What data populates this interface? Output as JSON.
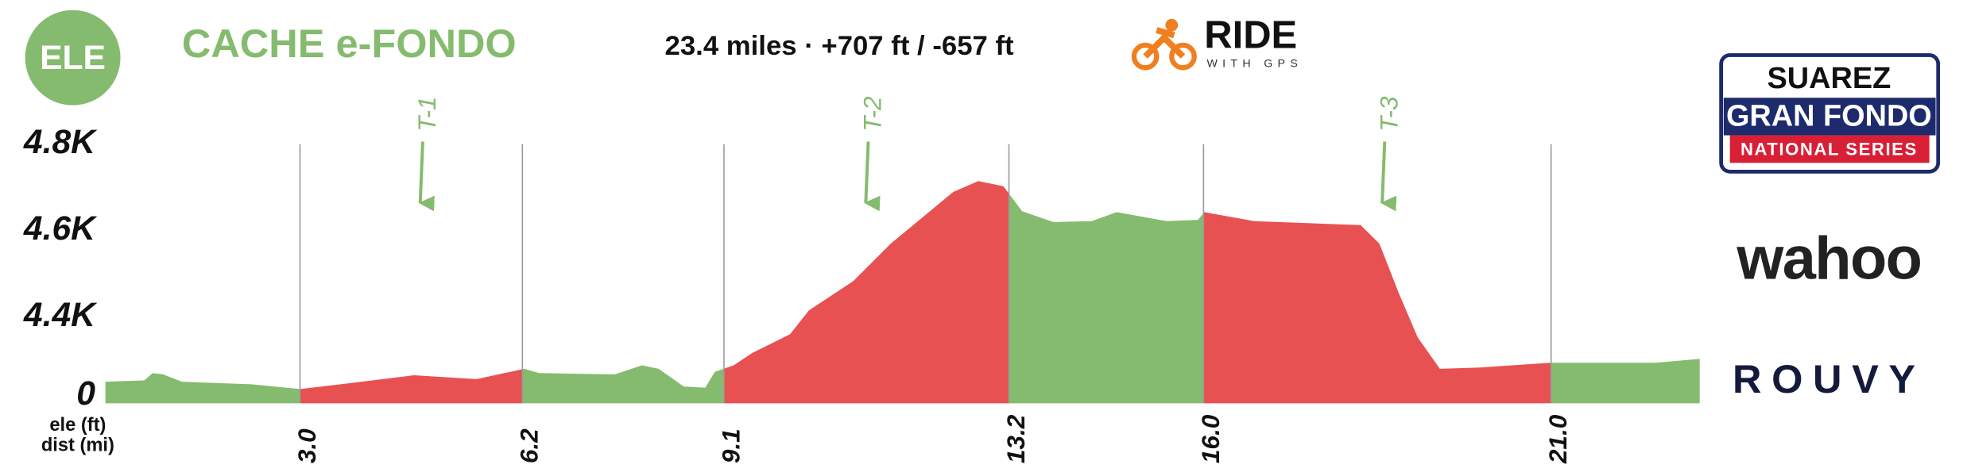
{
  "chart_data": {
    "type": "area",
    "badge": "ELE",
    "title": "CACHE e-FONDO",
    "subtitle": "23.4 miles · +707 ft / -657 ft",
    "y_label": "ele (ft)",
    "x_label": "dist (mi)",
    "x": [
      0.2,
      0.76,
      0.88,
      1.03,
      1.3,
      2.3,
      3.0,
      3.74,
      4.64,
      5.54,
      6.23,
      6.44,
      7.53,
      7.92,
      8.16,
      8.52,
      8.83,
      8.97,
      9.24,
      9.51,
      10.05,
      10.32,
      10.96,
      11.5,
      11.95,
      12.4,
      12.76,
      13.12,
      13.39,
      13.84,
      14.39,
      14.75,
      15.47,
      15.92,
      16.01,
      16.73,
      18.26,
      18.53,
      18.81,
      19.08,
      19.4,
      19.98,
      20.99,
      22.5,
      23.14
    ],
    "values": [
      4250,
      4253,
      4270,
      4267,
      4250,
      4244,
      4233,
      4247,
      4265,
      4256,
      4280,
      4270,
      4267,
      4288,
      4280,
      4239,
      4236,
      4273,
      4288,
      4317,
      4360,
      4415,
      4483,
      4570,
      4630,
      4690,
      4715,
      4703,
      4645,
      4620,
      4622,
      4643,
      4622,
      4625,
      4643,
      4622,
      4613,
      4570,
      4455,
      4353,
      4280,
      4283,
      4294,
      4294,
      4303
    ],
    "xlim": [
      0.2,
      23.14
    ],
    "ylim": [
      4200,
      4850
    ],
    "y_axis_break": true,
    "yticks": [
      {
        "value": 0,
        "label": "0"
      },
      {
        "value": 4400,
        "label": "4.4K"
      },
      {
        "value": 4600,
        "label": "4.6K"
      },
      {
        "value": 4800,
        "label": "4.8K"
      }
    ],
    "xticks": [
      {
        "value": 3.0,
        "label": "3.0"
      },
      {
        "value": 6.2,
        "label": "6.2"
      },
      {
        "value": 9.1,
        "label": "9.1"
      },
      {
        "value": 13.2,
        "label": "13.2"
      },
      {
        "value": 16.0,
        "label": "16.0"
      },
      {
        "value": 21.0,
        "label": "21.0"
      }
    ],
    "segment_colors": [
      "#85bb6e",
      "#e85151",
      "#85bb6e",
      "#e85151",
      "#85bb6e",
      "#e85151",
      "#85bb6e"
    ],
    "markers": [
      {
        "label": "T-1",
        "x": 4.73
      },
      {
        "label": "T-2",
        "x": 11.14
      },
      {
        "label": "T-3",
        "x": 18.57
      }
    ],
    "marker_color": "#85bb6e"
  },
  "logos": {
    "ride_title": "RIDE",
    "ride_sub": "WITH GPS",
    "suarez": "SUAREZ",
    "gran_fondo": "GRAN FONDO",
    "national": "NATIONAL SERIES",
    "wahoo": "wahoo",
    "rouvy": "ROUVY"
  }
}
